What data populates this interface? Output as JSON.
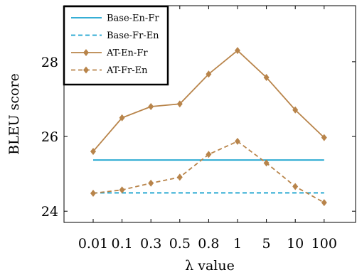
{
  "chart_data": {
    "type": "line",
    "xlabel": "λ value",
    "ylabel": "BLEU score",
    "categories": [
      "0.01",
      "0.1",
      "0.3",
      "0.5",
      "0.8",
      "1",
      "5",
      "10",
      "100"
    ],
    "ylim": [
      23.7,
      29.5
    ],
    "yticks": [
      24,
      26,
      28
    ],
    "grid": false,
    "legend_position": "top-left",
    "series": [
      {
        "name": "Base-En-Fr",
        "style": "solid",
        "marker": "none",
        "color": "#1aa3cf",
        "values": [
          25.37,
          25.37,
          25.37,
          25.37,
          25.37,
          25.37,
          25.37,
          25.37,
          25.37
        ]
      },
      {
        "name": "Base-Fr-En",
        "style": "dashed",
        "marker": "none",
        "color": "#1aa3cf",
        "values": [
          24.49,
          24.49,
          24.49,
          24.49,
          24.49,
          24.49,
          24.49,
          24.49,
          24.49
        ]
      },
      {
        "name": "AT-En-Fr",
        "style": "solid",
        "marker": "diamond",
        "color": "#b8844a",
        "values": [
          25.6,
          26.5,
          26.8,
          26.87,
          27.67,
          28.3,
          27.58,
          26.71,
          25.97
        ]
      },
      {
        "name": "AT-Fr-En",
        "style": "dashed",
        "marker": "diamond",
        "color": "#b8844a",
        "values": [
          24.48,
          24.57,
          24.75,
          24.91,
          25.52,
          25.87,
          25.29,
          24.66,
          24.23
        ]
      }
    ]
  }
}
